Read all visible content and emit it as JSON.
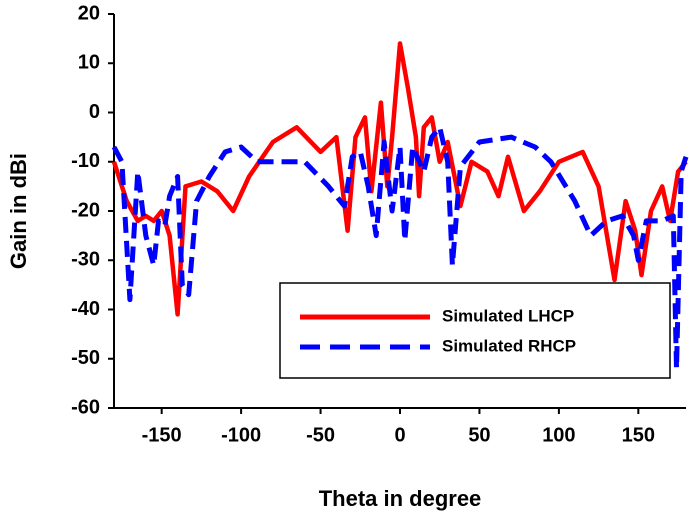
{
  "chart_data": {
    "type": "line",
    "x_label": "Theta in degree",
    "y_label": "Gain in dBi",
    "xlim": [
      -180,
      180
    ],
    "ylim": [
      -60,
      20
    ],
    "xticks": [
      -150,
      -100,
      -50,
      0,
      50,
      100,
      150
    ],
    "yticks": [
      -60,
      -50,
      -40,
      -30,
      -20,
      -10,
      0,
      10,
      20
    ],
    "legend": "lower center",
    "series": [
      {
        "name": "Simulated LHCP",
        "color": "#ff0000",
        "dash": false,
        "x": [
          -180,
          -172,
          -165,
          -160,
          -155,
          -150,
          -145,
          -140,
          -135,
          -125,
          -115,
          -105,
          -95,
          -80,
          -65,
          -50,
          -40,
          -33,
          -28,
          -22,
          -18,
          -12,
          -8,
          -5,
          0,
          5,
          10,
          12,
          15,
          20,
          25,
          30,
          38,
          45,
          55,
          62,
          68,
          78,
          88,
          100,
          115,
          125,
          135,
          142,
          148,
          152,
          158,
          165,
          170,
          175,
          180
        ],
        "values": [
          -10,
          -18,
          -22,
          -21,
          -22,
          -20,
          -25,
          -41,
          -15,
          -14,
          -16,
          -20,
          -13,
          -6,
          -3,
          -8,
          -5,
          -24,
          -5,
          -1,
          -16,
          2,
          -15,
          -5,
          14,
          5,
          -5,
          -17,
          -3,
          -1,
          -10,
          -6,
          -19,
          -10,
          -12,
          -17,
          -9,
          -20,
          -16,
          -10,
          -8,
          -15,
          -34,
          -18,
          -24,
          -33,
          -20,
          -15,
          -22,
          -12,
          -10
        ]
      },
      {
        "name": "Simulated RHCP",
        "color": "#0000ff",
        "dash": true,
        "x": [
          -180,
          -175,
          -170,
          -165,
          -160,
          -155,
          -152,
          -148,
          -145,
          -140,
          -137,
          -133,
          -128,
          -120,
          -110,
          -100,
          -90,
          -75,
          -60,
          -45,
          -35,
          -30,
          -25,
          -20,
          -15,
          -10,
          -5,
          0,
          3,
          8,
          15,
          20,
          25,
          30,
          33,
          38,
          50,
          70,
          85,
          95,
          110,
          120,
          130,
          140,
          147,
          150,
          155,
          165,
          172,
          174,
          177,
          180
        ],
        "values": [
          -7,
          -10,
          -38,
          -12,
          -25,
          -31,
          -22,
          -23,
          -17,
          -13,
          -35,
          -37,
          -18,
          -13,
          -8,
          -7,
          -10,
          -10,
          -10,
          -15,
          -19,
          -9,
          -8,
          -15,
          -25,
          -6,
          -20,
          -7,
          -26,
          -7,
          -12,
          -5,
          -3,
          -10,
          -31,
          -11,
          -6,
          -5,
          -7,
          -10,
          -18,
          -25,
          -22,
          -21,
          -25,
          -30,
          -22,
          -22,
          -21,
          -52,
          -12,
          -9
        ]
      }
    ]
  }
}
